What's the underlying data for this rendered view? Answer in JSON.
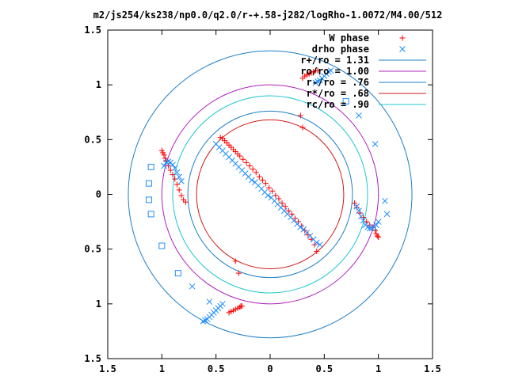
{
  "chart_data": {
    "type": "scatter",
    "title": "m2/js254/ks238/np0.0/q2.0/r-+.58-j282/logRho-1.0072/M4.00/512",
    "xlim": [
      -1.5,
      1.5
    ],
    "ylim": [
      -1.5,
      1.5
    ],
    "x_tick_labels": [
      "1.5",
      "1",
      "0.5",
      "0",
      "0.5",
      "1",
      "1.5"
    ],
    "y_tick_labels": [
      "1.5",
      "1",
      "0.5",
      "0",
      "0.5",
      "1",
      "1.5"
    ],
    "grid": false,
    "legend_position": "top-right",
    "series": [
      {
        "name": "W phase",
        "marker": "plus",
        "color": "#ff0000",
        "x": [
          -0.46,
          -0.44,
          -0.42,
          -0.4,
          -0.38,
          -0.36,
          -0.34,
          -0.32,
          -0.3,
          -0.28,
          -0.25,
          -0.22,
          -0.19,
          -0.16,
          -0.13,
          -0.1,
          -0.07,
          -0.04,
          -0.01,
          0.02,
          0.05,
          0.08,
          0.11,
          0.14,
          0.17,
          0.2,
          0.23,
          0.26,
          0.29,
          0.32,
          0.35,
          0.38,
          0.41,
          0.43,
          -1.0,
          -0.99,
          -0.98,
          -0.97,
          -0.96,
          -0.94,
          -0.92,
          -0.9,
          -0.88,
          -0.86,
          -0.84,
          -0.82,
          -0.8,
          -0.78,
          0.78,
          0.8,
          0.83,
          0.86,
          0.89,
          0.92,
          0.95,
          0.97,
          0.98,
          0.99,
          1.0,
          0.28,
          0.3,
          -0.32,
          -0.29,
          -0.38,
          -0.36,
          -0.34,
          -0.32,
          -0.3,
          -0.28,
          -0.27,
          -0.26,
          0.3,
          0.32,
          0.34,
          0.36,
          0.38,
          0.4,
          0.42,
          0.44
        ],
        "y": [
          0.52,
          0.51,
          0.49,
          0.47,
          0.45,
          0.43,
          0.41,
          0.39,
          0.37,
          0.35,
          0.32,
          0.29,
          0.26,
          0.23,
          0.2,
          0.16,
          0.13,
          0.1,
          0.06,
          0.03,
          -0.01,
          -0.04,
          -0.08,
          -0.11,
          -0.15,
          -0.18,
          -0.22,
          -0.25,
          -0.29,
          -0.33,
          -0.37,
          -0.41,
          -0.46,
          -0.52,
          0.4,
          0.38,
          0.36,
          0.33,
          0.3,
          0.26,
          0.22,
          0.18,
          0.14,
          0.09,
          0.04,
          -0.01,
          -0.05,
          -0.07,
          -0.08,
          -0.12,
          -0.17,
          -0.21,
          -0.25,
          -0.28,
          -0.3,
          -0.33,
          -0.36,
          -0.38,
          -0.39,
          0.72,
          0.61,
          -0.61,
          -0.72,
          -1.08,
          -1.07,
          -1.06,
          -1.05,
          -1.04,
          -1.03,
          -1.02,
          -1.02,
          1.06,
          1.08,
          1.09,
          1.1,
          1.11,
          1.12,
          1.13,
          1.13
        ]
      },
      {
        "name": "drho phase",
        "marker": "cross",
        "color": "#1f8fff",
        "x": [
          -0.5,
          -0.47,
          -0.44,
          -0.41,
          -0.38,
          -0.35,
          -0.32,
          -0.29,
          -0.26,
          -0.23,
          -0.2,
          -0.17,
          -0.14,
          -0.11,
          -0.08,
          -0.05,
          -0.02,
          0.01,
          0.04,
          0.07,
          0.1,
          0.13,
          0.16,
          0.19,
          0.22,
          0.25,
          0.28,
          0.31,
          0.34,
          0.37,
          0.4,
          0.43,
          0.46,
          -0.98,
          -0.96,
          -0.94,
          -0.92,
          -0.9,
          -0.88,
          -0.86,
          -0.84,
          -0.82,
          0.8,
          0.82,
          0.84,
          0.86,
          0.88,
          0.9,
          0.92,
          0.94,
          0.96,
          0.98,
          1.0,
          -0.62,
          -0.6,
          -0.58,
          -0.56,
          -0.54,
          -0.52,
          -0.5,
          -0.48,
          -0.46,
          -0.44,
          0.42,
          0.44,
          0.46,
          0.48,
          0.5,
          0.52,
          0.54,
          0.56,
          1.08,
          1.06,
          0.97,
          0.82,
          -0.72,
          -0.56
        ],
        "y": [
          0.46,
          0.43,
          0.4,
          0.37,
          0.34,
          0.31,
          0.28,
          0.25,
          0.22,
          0.19,
          0.16,
          0.13,
          0.11,
          0.08,
          0.05,
          0.02,
          -0.01,
          -0.03,
          -0.06,
          -0.09,
          -0.12,
          -0.15,
          -0.18,
          -0.21,
          -0.24,
          -0.27,
          -0.3,
          -0.32,
          -0.35,
          -0.38,
          -0.41,
          -0.44,
          -0.46,
          0.26,
          0.29,
          0.3,
          0.29,
          0.27,
          0.24,
          0.2,
          0.16,
          0.12,
          -0.11,
          -0.15,
          -0.2,
          -0.24,
          -0.28,
          -0.3,
          -0.31,
          -0.31,
          -0.3,
          -0.28,
          -0.25,
          -1.16,
          -1.15,
          -1.14,
          -1.12,
          -1.1,
          -1.08,
          -1.06,
          -1.04,
          -1.02,
          -1.0,
          1.02,
          1.03,
          1.04,
          1.06,
          1.08,
          1.1,
          1.12,
          1.13,
          -0.18,
          -0.06,
          0.46,
          0.72,
          -0.84,
          -0.98
        ]
      },
      {
        "name": "",
        "marker": "square",
        "color": "#1f8fff",
        "x": [
          -1.1,
          -1.12,
          -1.12,
          -1.1,
          -1.0,
          -0.85,
          0.7
        ],
        "y": [
          0.25,
          0.1,
          -0.05,
          -0.18,
          -0.47,
          -0.72,
          0.85
        ]
      }
    ],
    "circles": [
      {
        "label": "r+/ro = 1.31",
        "radius": 1.31,
        "color": "#1f7fc7"
      },
      {
        "label": "ro/ro = 1.00",
        "radius": 1.0,
        "color": "#b020c0"
      },
      {
        "label": "r-/ro = .76",
        "radius": 0.76,
        "color": "#1f7fc7"
      },
      {
        "label": "r*/ro = .68",
        "radius": 0.68,
        "color": "#d01818"
      },
      {
        "label": "rc/ro = .90",
        "radius": 0.9,
        "color": "#20c8d0"
      }
    ]
  }
}
